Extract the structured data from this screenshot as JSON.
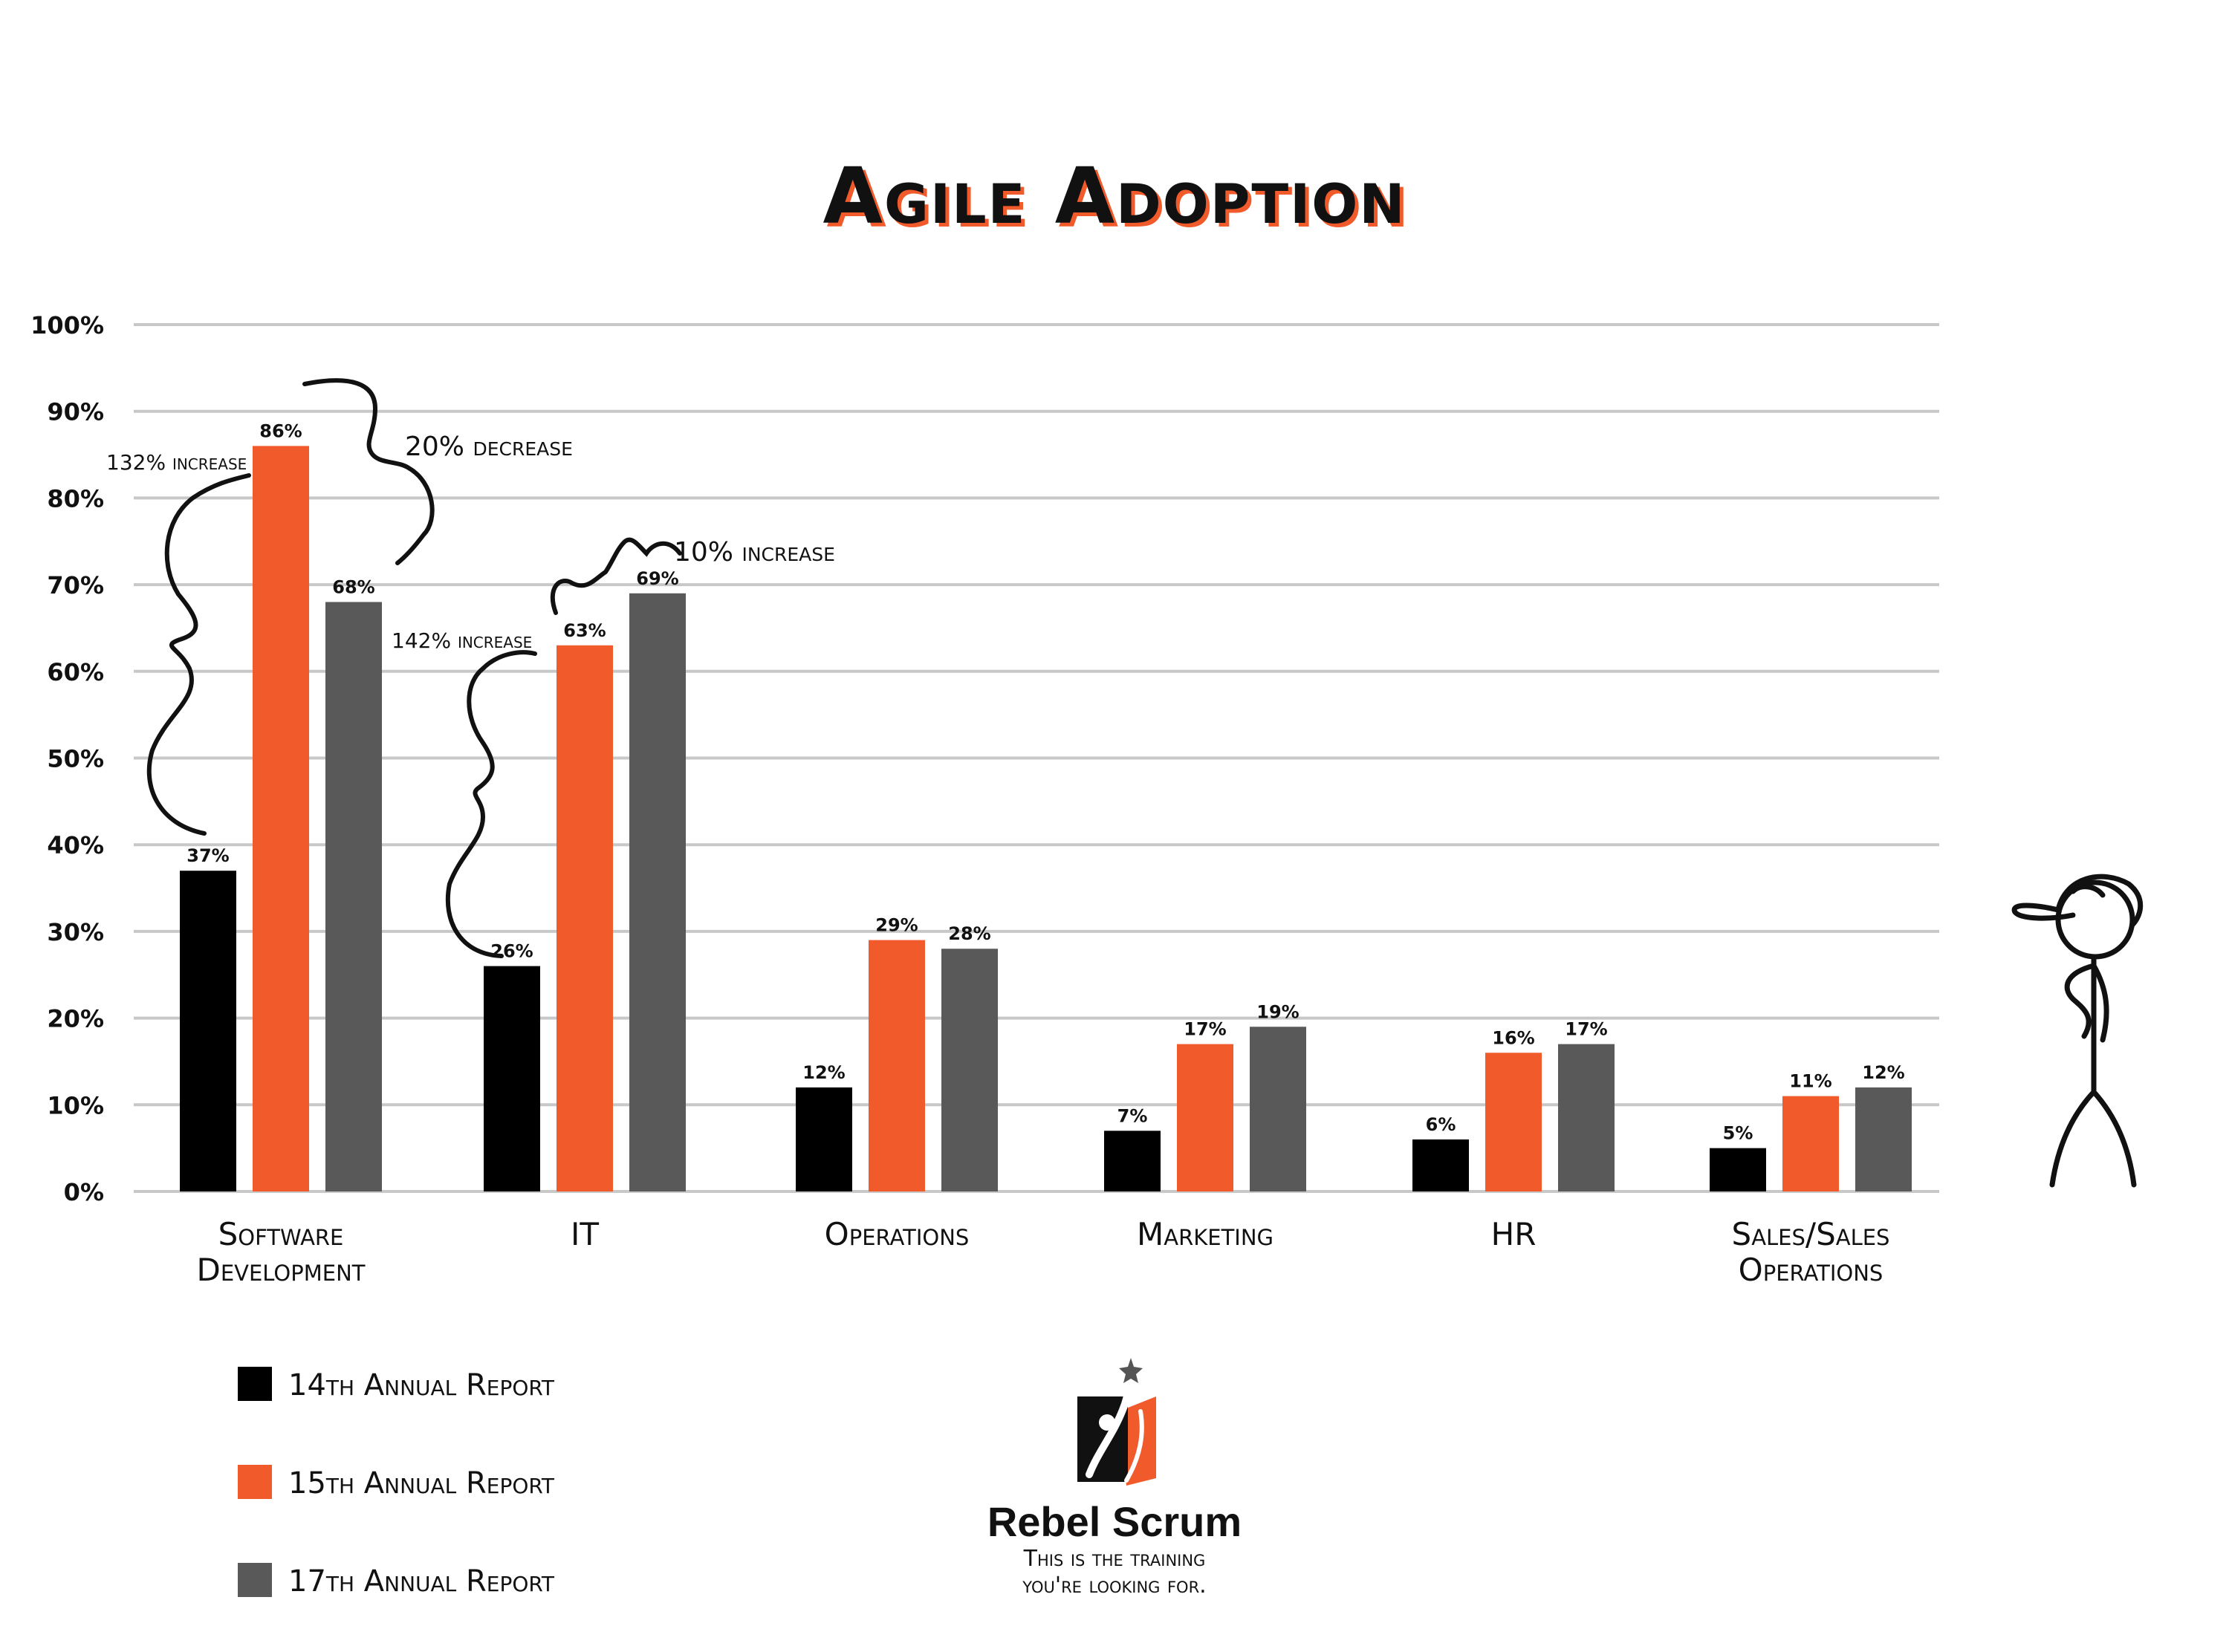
{
  "chart_data": {
    "type": "bar",
    "title": "Agile Adoption",
    "categories": [
      "Software\nDevelopment",
      "IT",
      "Operations",
      "Marketing",
      "HR",
      "Sales/Sales\nOperations"
    ],
    "series": [
      {
        "name": "14th Annual Report",
        "color": "#000000",
        "values": [
          37,
          26,
          12,
          7,
          6,
          5
        ]
      },
      {
        "name": "15th Annual Report",
        "color": "#f15a2b",
        "values": [
          86,
          63,
          29,
          17,
          16,
          11
        ]
      },
      {
        "name": "17th Annual Report",
        "color": "#595959",
        "values": [
          68,
          69,
          28,
          19,
          17,
          12
        ]
      }
    ],
    "ylim": [
      0,
      100
    ],
    "yticks": [
      "0%",
      "10%",
      "20%",
      "30%",
      "40%",
      "50%",
      "60%",
      "70%",
      "80%",
      "90%",
      "100%"
    ],
    "value_suffix": "%",
    "grid": true,
    "legend_position": "bottom-left",
    "annotations": [
      {
        "text": "132% increase",
        "category": 0,
        "from_series": 0,
        "to_series": 1
      },
      {
        "text": "20% decrease",
        "category": 0,
        "from_series": 1,
        "to_series": 2
      },
      {
        "text": "142% increase",
        "category": 1,
        "from_series": 0,
        "to_series": 1
      },
      {
        "text": "10% increase",
        "category": 1,
        "from_series": 1,
        "to_series": 2
      }
    ]
  },
  "branding": {
    "name": "Rebel Scrum",
    "tagline_line1": "This is the training",
    "tagline_line2": "you're looking for.",
    "colors": {
      "accent": "#f15a2b",
      "dark": "#111111"
    }
  },
  "illustration": {
    "icon": "stick-figure-with-cap-icon"
  }
}
